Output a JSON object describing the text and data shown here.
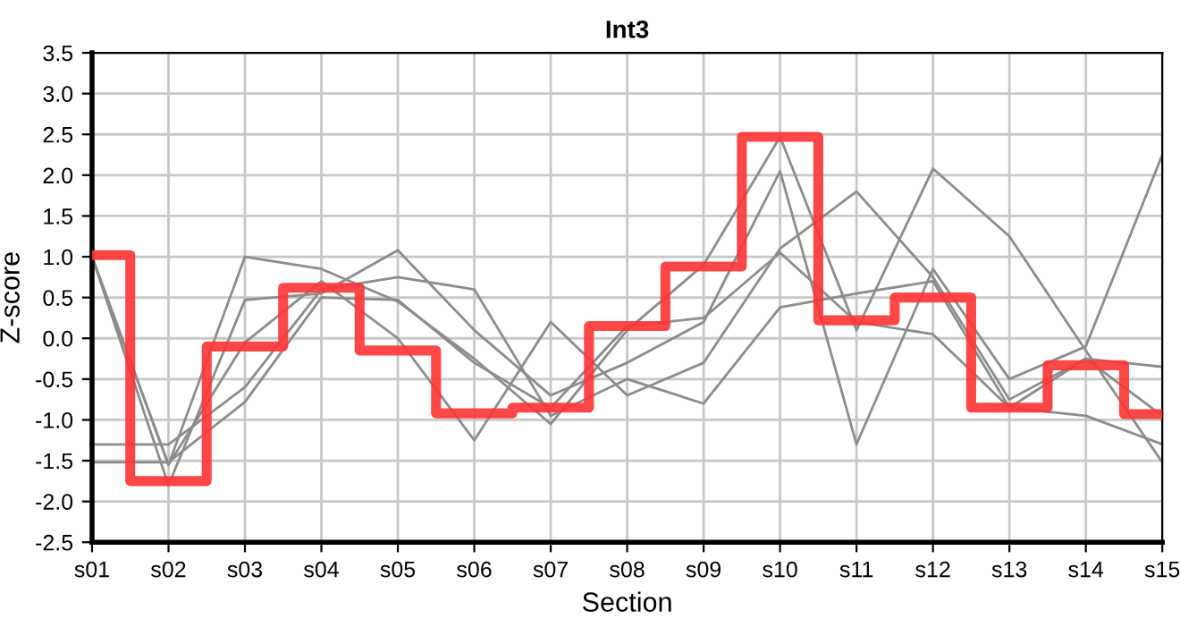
{
  "chart_data": {
    "type": "line",
    "title": "Int3",
    "xlabel": "Section",
    "ylabel": "Z-score",
    "categories": [
      "s01",
      "s02",
      "s03",
      "s04",
      "s05",
      "s06",
      "s07",
      "s08",
      "s09",
      "s10",
      "s11",
      "s12",
      "s13",
      "s14",
      "s15"
    ],
    "series": [
      {
        "color": "#8c8c8c",
        "values": [
          1.0,
          -1.55,
          1.0,
          0.85,
          0.45,
          -0.25,
          -1.05,
          0.1,
          0.9,
          2.47,
          0.1,
          2.08,
          1.25,
          -0.15,
          -1.52
        ]
      },
      {
        "color": "#8c8c8c",
        "values": [
          1.0,
          -1.8,
          0.47,
          0.55,
          1.08,
          0.1,
          -0.7,
          -0.3,
          0.2,
          2.05,
          -1.3,
          0.85,
          -0.5,
          -0.1,
          2.25
        ]
      },
      {
        "color": "#8c8c8c",
        "values": [
          1.0,
          -1.55,
          -0.05,
          0.7,
          0.0,
          -1.25,
          0.2,
          -0.7,
          -0.3,
          1.1,
          1.8,
          0.75,
          -0.75,
          -0.25,
          -0.35
        ]
      },
      {
        "color": "#8c8c8c",
        "values": [
          -1.3,
          -1.3,
          -0.6,
          0.6,
          0.75,
          0.6,
          -0.95,
          -0.5,
          -0.8,
          0.38,
          0.55,
          0.7,
          -0.85,
          -0.95,
          -1.3
        ]
      },
      {
        "color": "#8c8c8c",
        "values": [
          -1.52,
          -1.52,
          -0.78,
          0.5,
          0.47,
          -0.3,
          -0.85,
          0.15,
          0.25,
          1.05,
          0.2,
          0.05,
          -0.85,
          -0.25,
          -0.95
        ]
      },
      {
        "type": "step",
        "color": "#ff3333",
        "values": [
          1.02,
          -1.75,
          -0.1,
          0.62,
          -0.15,
          -0.92,
          -0.85,
          0.15,
          0.88,
          2.47,
          0.22,
          0.5,
          -0.85,
          -0.33,
          -0.93
        ]
      }
    ],
    "ylim": [
      -2.5,
      3.5
    ],
    "yticks": [
      -2.5,
      {
        "value": -2,
        "label": "-2.0"
      },
      -1.5,
      {
        "value": -1,
        "label": "-1.0"
      },
      -0.5,
      {
        "value": 0,
        "label": "0.0"
      },
      0.5,
      {
        "value": 1,
        "label": "1.0"
      },
      1.5,
      {
        "value": 2,
        "label": "2.0"
      },
      2.5,
      {
        "value": 3,
        "label": "3.0"
      },
      3.5
    ],
    "grid": true
  }
}
